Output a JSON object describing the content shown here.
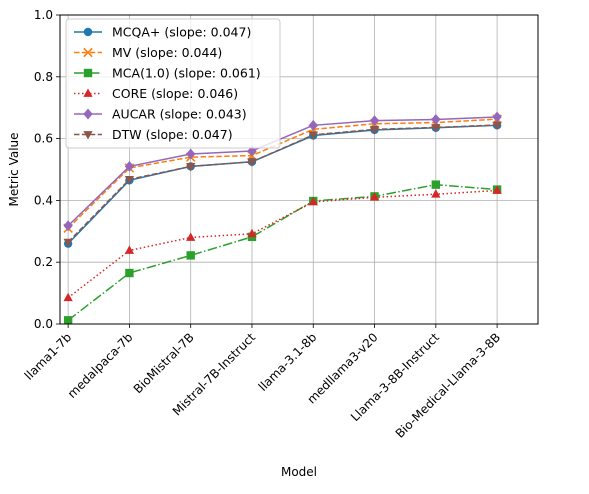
{
  "chart_data": {
    "type": "line",
    "title": "",
    "xlabel": "Model",
    "ylabel": "Metric Value",
    "ylim": [
      0.0,
      1.0
    ],
    "yticks": [
      0.0,
      0.2,
      0.4,
      0.6,
      0.8,
      1.0
    ],
    "ytick_labels": [
      "0.0",
      "0.2",
      "0.4",
      "0.6",
      "0.8",
      "1.0"
    ],
    "grid": true,
    "legend_position": "upper-left",
    "categories": [
      "llama1-7b",
      "medalpaca-7b",
      "BioMistral-7B",
      "Mistral-7B-Instruct",
      "llama-3.1-8b",
      "medllama3-v20",
      "Llama-3-8B-Instruct",
      "Bio-Medical-Llama-3-8B"
    ],
    "series": [
      {
        "name": "MCQA+ (slope: 0.047)",
        "color": "#1f77b4",
        "dash": "solid",
        "marker": "circle",
        "values": [
          0.26,
          0.465,
          0.51,
          0.525,
          0.61,
          0.628,
          0.635,
          0.643
        ]
      },
      {
        "name": "MV (slope: 0.044)",
        "color": "#ff7f0e",
        "dash": "dashed",
        "marker": "x",
        "values": [
          0.31,
          0.505,
          0.54,
          0.545,
          0.63,
          0.648,
          0.652,
          0.663
        ]
      },
      {
        "name": "MCA(1.0) (slope: 0.061)",
        "color": "#2ca02c",
        "dash": "dashdot",
        "marker": "square",
        "values": [
          0.012,
          0.165,
          0.222,
          0.282,
          0.398,
          0.413,
          0.451,
          0.435
        ]
      },
      {
        "name": "CORE (slope: 0.046)",
        "color": "#d62728",
        "dash": "dotted",
        "marker": "triangle-up",
        "values": [
          0.085,
          0.238,
          0.28,
          0.292,
          0.395,
          0.41,
          0.42,
          0.432
        ]
      },
      {
        "name": "AUCAR (slope: 0.043)",
        "color": "#9467bd",
        "dash": "solid",
        "marker": "diamond",
        "values": [
          0.318,
          0.51,
          0.55,
          0.56,
          0.643,
          0.658,
          0.662,
          0.67
        ]
      },
      {
        "name": "DTW (slope: 0.047)",
        "color": "#8c564b",
        "dash": "dashed",
        "marker": "triangle-down",
        "values": [
          0.265,
          0.468,
          0.51,
          0.525,
          0.612,
          0.63,
          0.636,
          0.644
        ]
      }
    ]
  }
}
